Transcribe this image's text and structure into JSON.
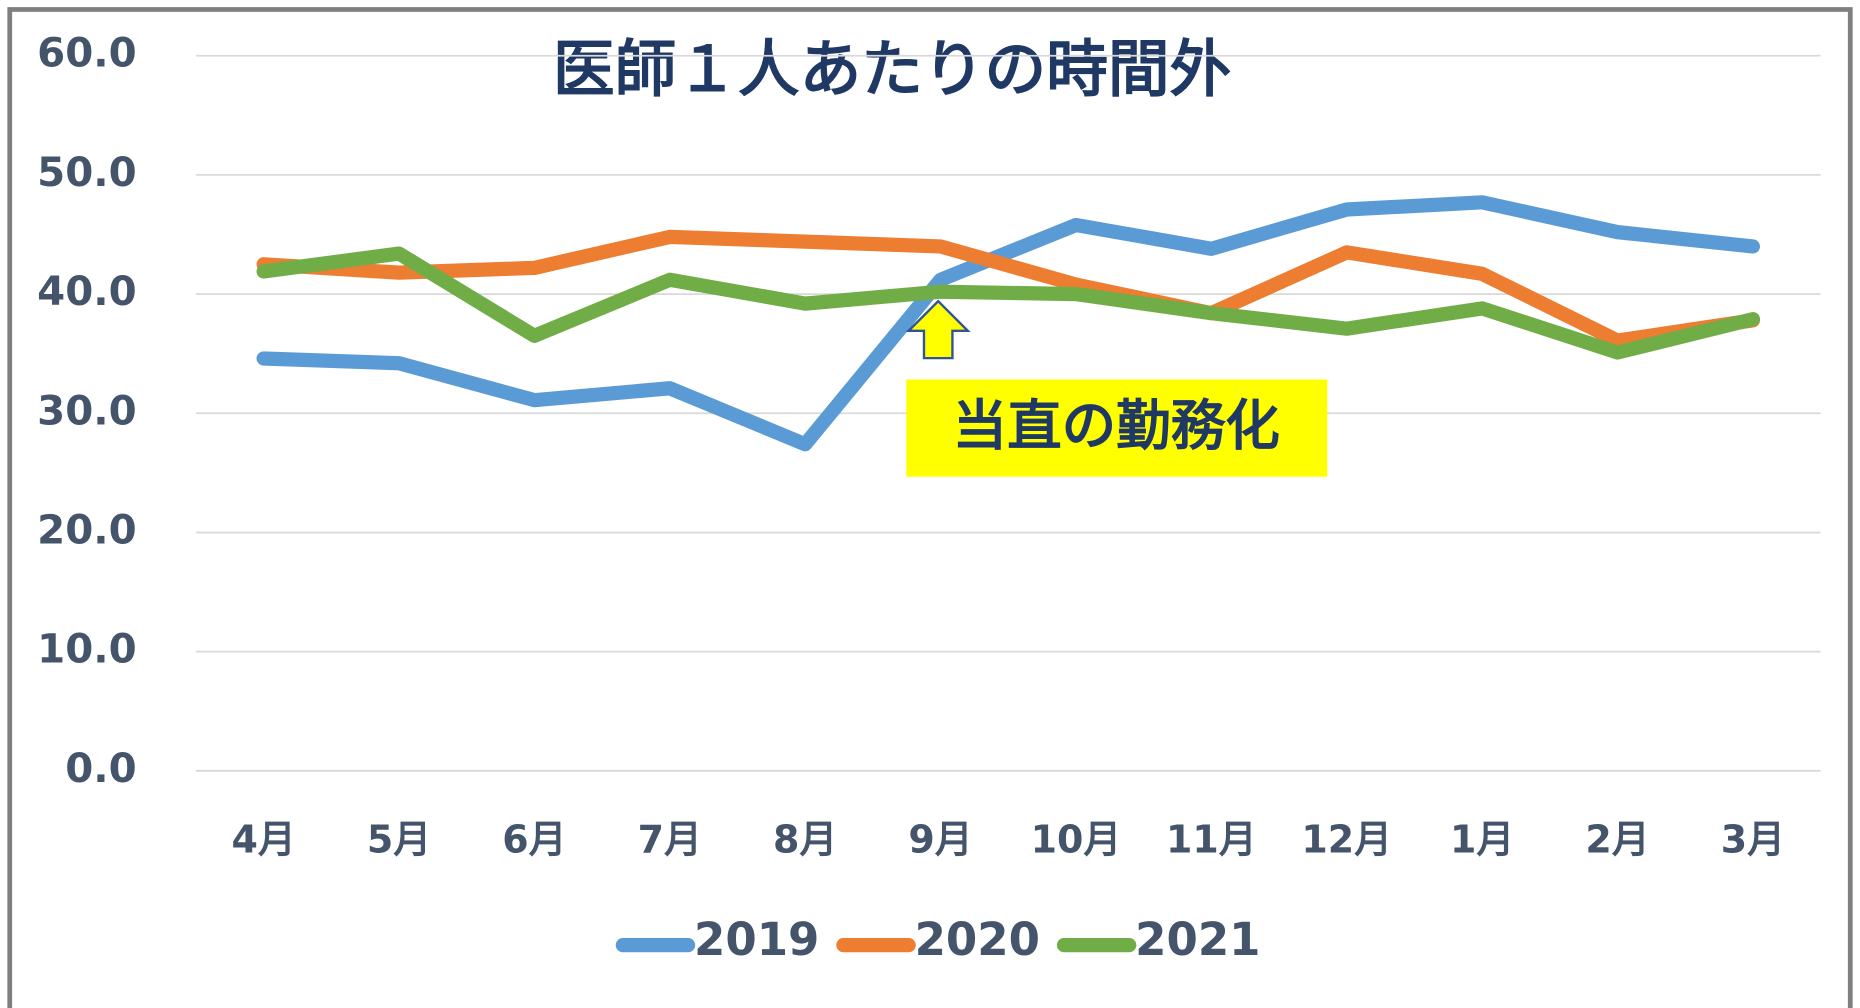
{
  "chart_data": {
    "type": "line",
    "title": "医師１人あたりの時間外",
    "annotation": "当直の勤務化",
    "categories": [
      "4月",
      "5月",
      "6月",
      "7月",
      "8月",
      "9月",
      "10月",
      "11月",
      "12月",
      "1月",
      "2月",
      "3月"
    ],
    "series": [
      {
        "name": "2019",
        "color": "#5b9bd5",
        "values": [
          34.6,
          34.2,
          31.1,
          32.1,
          27.4,
          41.2,
          45.8,
          43.8,
          47.1,
          47.7,
          45.2,
          44.0
        ]
      },
      {
        "name": "2020",
        "color": "#ed7d31",
        "values": [
          42.5,
          41.8,
          42.2,
          44.8,
          44.4,
          44.0,
          40.8,
          38.4,
          43.5,
          41.7,
          36.1,
          37.8
        ]
      },
      {
        "name": "2021",
        "color": "#70ad47",
        "values": [
          41.9,
          43.4,
          36.5,
          41.2,
          39.2,
          40.2,
          40.0,
          38.4,
          37.1,
          38.8,
          35.1,
          37.9
        ]
      }
    ],
    "ylim": [
      0,
      60
    ],
    "yticks": [
      {
        "value": 0,
        "label": "0.0"
      },
      {
        "value": 10,
        "label": "10.0"
      },
      {
        "value": 20,
        "label": "20.0"
      },
      {
        "value": 30,
        "label": "30.0"
      },
      {
        "value": 40,
        "label": "40.0"
      },
      {
        "value": 50,
        "label": "50.0"
      },
      {
        "value": 60,
        "label": "60.0"
      }
    ],
    "grid": true,
    "legend": "bottom"
  }
}
